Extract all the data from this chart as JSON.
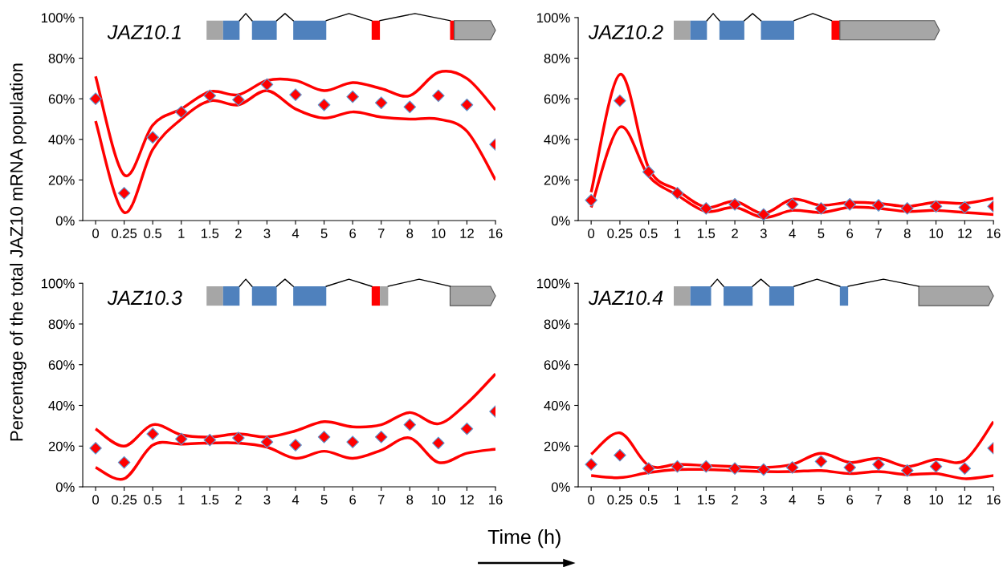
{
  "chart_data": [
    {
      "type": "line",
      "title": "JAZ10.1",
      "ylabel": "Percentage of the total JAZ10 mRNA population",
      "categories": [
        "0",
        "0.25",
        "0.5",
        "1",
        "1.5",
        "2",
        "3",
        "4",
        "5",
        "6",
        "7",
        "8",
        "10",
        "12",
        "16"
      ],
      "ylim": [
        0,
        100
      ],
      "yticks": [
        {
          "value": 0,
          "label": "0%"
        },
        {
          "value": 20,
          "label": "20%"
        },
        {
          "value": 40,
          "label": "40%"
        },
        {
          "value": 60,
          "label": "60%"
        },
        {
          "value": 80,
          "label": "80%"
        },
        {
          "value": 100,
          "label": "100%"
        }
      ],
      "grid": false,
      "series": [
        {
          "color": "#ff0000",
          "marker": "none",
          "values": [
            71,
            22.5,
            47,
            55,
            63.5,
            62,
            69,
            69,
            64,
            68,
            65,
            61.5,
            73,
            70,
            54.5
          ]
        },
        {
          "color": "#ff0000",
          "marker": "none",
          "values": [
            49,
            4,
            35,
            50,
            59,
            57,
            64,
            55,
            50.5,
            53.5,
            51,
            50,
            50,
            44,
            20
          ]
        },
        {
          "type": "scatter",
          "color": "#ff0000",
          "marker": "diamond",
          "values": [
            60,
            13.5,
            41,
            53.5,
            61.5,
            59.5,
            67,
            62,
            57,
            61,
            58,
            56,
            61.5,
            57,
            37.5
          ]
        }
      ]
    },
    {
      "type": "line",
      "title": "JAZ10.2",
      "categories": [
        "0",
        "0.25",
        "0.5",
        "1",
        "1.5",
        "2",
        "3",
        "4",
        "5",
        "6",
        "7",
        "8",
        "10",
        "12",
        "16"
      ],
      "ylim": [
        0,
        100
      ],
      "yticks": [
        {
          "value": 0,
          "label": "0%"
        },
        {
          "value": 20,
          "label": "20%"
        },
        {
          "value": 40,
          "label": "40%"
        },
        {
          "value": 60,
          "label": "60%"
        },
        {
          "value": 80,
          "label": "80%"
        },
        {
          "value": 100,
          "label": "100%"
        }
      ],
      "grid": false,
      "series": [
        {
          "color": "#ff0000",
          "marker": "none",
          "values": [
            14,
            72,
            26,
            15,
            6.5,
            9.5,
            3.5,
            10.5,
            7.5,
            9,
            8.5,
            7,
            9,
            8.5,
            11
          ]
        },
        {
          "color": "#ff0000",
          "marker": "none",
          "values": [
            6.5,
            46,
            22,
            12.5,
            4.5,
            6.5,
            1.5,
            5,
            4,
            6.5,
            6,
            4.5,
            5,
            4,
            3
          ]
        },
        {
          "type": "scatter",
          "color": "#ff0000",
          "marker": "diamond",
          "values": [
            10,
            59,
            24,
            13.5,
            6,
            8,
            3,
            8,
            6,
            8,
            7.5,
            6,
            7,
            6.5,
            7
          ]
        }
      ]
    },
    {
      "type": "line",
      "title": "JAZ10.3",
      "xlabel": "Time (h)",
      "categories": [
        "0",
        "0.25",
        "0.5",
        "1",
        "1.5",
        "2",
        "3",
        "4",
        "5",
        "6",
        "7",
        "8",
        "10",
        "12",
        "16"
      ],
      "ylim": [
        0,
        100
      ],
      "yticks": [
        {
          "value": 0,
          "label": "0%"
        },
        {
          "value": 20,
          "label": "20%"
        },
        {
          "value": 40,
          "label": "40%"
        },
        {
          "value": 60,
          "label": "60%"
        },
        {
          "value": 80,
          "label": "80%"
        },
        {
          "value": 100,
          "label": "100%"
        }
      ],
      "grid": false,
      "series": [
        {
          "color": "#ff0000",
          "marker": "none",
          "values": [
            28.5,
            20,
            30.5,
            25.5,
            24.5,
            26,
            24.5,
            27.5,
            32,
            29.5,
            30.5,
            36.5,
            31,
            41,
            55.5
          ]
        },
        {
          "color": "#ff0000",
          "marker": "none",
          "values": [
            9.5,
            4,
            20.5,
            21,
            21.5,
            21.5,
            19.5,
            14,
            17.5,
            14,
            18,
            24,
            12,
            16.5,
            18.5
          ]
        },
        {
          "type": "scatter",
          "color": "#ff0000",
          "marker": "diamond",
          "values": [
            19,
            12,
            26,
            23.5,
            23,
            24,
            22,
            20.5,
            24.5,
            22,
            24.5,
            30.5,
            21.5,
            28.5,
            37
          ]
        }
      ]
    },
    {
      "type": "line",
      "title": "JAZ10.4",
      "categories": [
        "0",
        "0.25",
        "0.5",
        "1",
        "1.5",
        "2",
        "3",
        "4",
        "5",
        "6",
        "7",
        "8",
        "10",
        "12",
        "16"
      ],
      "ylim": [
        0,
        100
      ],
      "yticks": [
        {
          "value": 0,
          "label": "0%"
        },
        {
          "value": 20,
          "label": "20%"
        },
        {
          "value": 40,
          "label": "40%"
        },
        {
          "value": 60,
          "label": "60%"
        },
        {
          "value": 80,
          "label": "80%"
        },
        {
          "value": 100,
          "label": "100%"
        }
      ],
      "grid": false,
      "series": [
        {
          "color": "#ff0000",
          "marker": "none",
          "values": [
            16,
            26.5,
            10.5,
            11,
            10.5,
            10,
            9.5,
            11,
            16.5,
            12,
            14,
            10,
            13.5,
            13,
            32
          ]
        },
        {
          "color": "#ff0000",
          "marker": "none",
          "values": [
            5.5,
            4.5,
            7,
            8.5,
            8.5,
            8,
            7.5,
            7.5,
            8,
            6.5,
            7.5,
            6,
            6.5,
            4,
            5.5
          ]
        },
        {
          "type": "scatter",
          "color": "#ff0000",
          "marker": "diamond",
          "values": [
            11,
            15.5,
            9,
            10,
            10,
            9,
            8.5,
            9.5,
            12.5,
            9.5,
            11,
            8,
            10,
            9,
            19
          ]
        }
      ]
    }
  ]
}
